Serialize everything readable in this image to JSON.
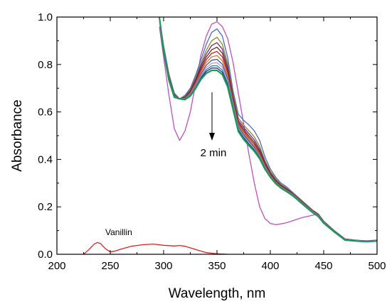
{
  "chart_data": {
    "type": "line",
    "title": "",
    "xlabel": "Wavelength, nm",
    "ylabel": "Absorbance",
    "xlim": [
      200,
      500
    ],
    "ylim": [
      0.0,
      1.0
    ],
    "xticks": [
      "200",
      "250",
      "300",
      "350",
      "400",
      "450",
      "500"
    ],
    "yticks": [
      "0.0",
      "0.2",
      "0.4",
      "0.6",
      "0.8",
      "1.0"
    ],
    "grid": false,
    "annotations": {
      "time_label": "2 min",
      "vanillin_label": "Vanillin"
    },
    "series": [
      {
        "color": "#c04fc0",
        "width": 1.3,
        "x": [
          296,
          300,
          305,
          310,
          315,
          320,
          325,
          330,
          335,
          340,
          345,
          350,
          355,
          360,
          365,
          370,
          375,
          380,
          385,
          390,
          395,
          400,
          405,
          410,
          415,
          420,
          425,
          430,
          435,
          440,
          445
        ],
        "y": [
          0.96,
          0.83,
          0.67,
          0.53,
          0.48,
          0.52,
          0.6,
          0.72,
          0.84,
          0.92,
          0.97,
          0.98,
          0.96,
          0.91,
          0.81,
          0.68,
          0.55,
          0.42,
          0.3,
          0.2,
          0.15,
          0.13,
          0.125,
          0.128,
          0.133,
          0.14,
          0.148,
          0.155,
          0.16,
          0.165,
          0.17
        ]
      },
      {
        "color": "#4a6fc0",
        "width": 1.3,
        "x": [
          296,
          300,
          305,
          310,
          315,
          320,
          325,
          330,
          335,
          340,
          345,
          350,
          355,
          360,
          365,
          370,
          375,
          380,
          385,
          390,
          395,
          400,
          405,
          410,
          415,
          420,
          425,
          430,
          435,
          440,
          445,
          450,
          460,
          470,
          480,
          490,
          500
        ],
        "y": [
          1.0,
          0.88,
          0.76,
          0.68,
          0.655,
          0.67,
          0.7,
          0.755,
          0.82,
          0.885,
          0.935,
          0.95,
          0.92,
          0.83,
          0.69,
          0.59,
          0.565,
          0.545,
          0.52,
          0.48,
          0.41,
          0.36,
          0.325,
          0.3,
          0.285,
          0.265,
          0.245,
          0.225,
          0.205,
          0.185,
          0.17,
          0.14,
          0.1,
          0.065,
          0.06,
          0.057,
          0.06
        ]
      },
      {
        "color": "#8a8a2a",
        "width": 1.3,
        "x": [
          296,
          300,
          305,
          310,
          315,
          320,
          325,
          330,
          335,
          340,
          345,
          350,
          355,
          360,
          365,
          370,
          375,
          380,
          385,
          390,
          395,
          400,
          405,
          410,
          415,
          420,
          425,
          430,
          435,
          440,
          445,
          450,
          460,
          470,
          480,
          490,
          500
        ],
        "y": [
          1.0,
          0.87,
          0.75,
          0.675,
          0.655,
          0.665,
          0.695,
          0.745,
          0.805,
          0.86,
          0.9,
          0.915,
          0.885,
          0.805,
          0.675,
          0.575,
          0.545,
          0.52,
          0.495,
          0.455,
          0.395,
          0.35,
          0.318,
          0.295,
          0.28,
          0.262,
          0.243,
          0.223,
          0.203,
          0.184,
          0.168,
          0.138,
          0.099,
          0.064,
          0.059,
          0.056,
          0.059
        ]
      },
      {
        "color": "#6a2a8a",
        "width": 1.3,
        "x": [
          296,
          300,
          305,
          310,
          315,
          320,
          325,
          330,
          335,
          340,
          345,
          350,
          355,
          360,
          365,
          370,
          375,
          380,
          385,
          390,
          395,
          400,
          405,
          410,
          415,
          420,
          425,
          430,
          435,
          440,
          445,
          450,
          460,
          470,
          480,
          490,
          500
        ],
        "y": [
          1.0,
          0.865,
          0.745,
          0.672,
          0.655,
          0.663,
          0.69,
          0.737,
          0.795,
          0.845,
          0.88,
          0.892,
          0.865,
          0.79,
          0.665,
          0.565,
          0.535,
          0.508,
          0.482,
          0.443,
          0.387,
          0.344,
          0.313,
          0.291,
          0.277,
          0.26,
          0.241,
          0.221,
          0.201,
          0.183,
          0.167,
          0.137,
          0.098,
          0.064,
          0.059,
          0.056,
          0.059
        ]
      },
      {
        "color": "#6a2a1a",
        "width": 1.3,
        "x": [
          296,
          300,
          305,
          310,
          315,
          320,
          325,
          330,
          335,
          340,
          345,
          350,
          355,
          360,
          365,
          370,
          375,
          380,
          385,
          390,
          395,
          400,
          405,
          410,
          415,
          420,
          425,
          430,
          435,
          440,
          445,
          450,
          460,
          470,
          480,
          490,
          500
        ],
        "y": [
          1.0,
          0.862,
          0.742,
          0.67,
          0.655,
          0.66,
          0.685,
          0.73,
          0.785,
          0.832,
          0.862,
          0.873,
          0.848,
          0.777,
          0.657,
          0.557,
          0.526,
          0.498,
          0.472,
          0.434,
          0.381,
          0.339,
          0.309,
          0.288,
          0.274,
          0.258,
          0.239,
          0.219,
          0.2,
          0.182,
          0.166,
          0.136,
          0.097,
          0.063,
          0.058,
          0.055,
          0.058
        ]
      },
      {
        "color": "#c02a2a",
        "width": 1.3,
        "x": [
          296,
          300,
          305,
          310,
          315,
          320,
          325,
          330,
          335,
          340,
          345,
          350,
          355,
          360,
          365,
          370,
          375,
          380,
          385,
          390,
          395,
          400,
          405,
          410,
          415,
          420,
          425,
          430,
          435,
          440,
          445,
          450,
          460,
          470,
          480,
          490,
          500
        ],
        "y": [
          1.0,
          0.86,
          0.74,
          0.668,
          0.655,
          0.658,
          0.681,
          0.724,
          0.776,
          0.82,
          0.847,
          0.855,
          0.832,
          0.765,
          0.649,
          0.55,
          0.518,
          0.49,
          0.464,
          0.427,
          0.376,
          0.335,
          0.306,
          0.286,
          0.272,
          0.256,
          0.238,
          0.218,
          0.199,
          0.181,
          0.165,
          0.135,
          0.097,
          0.063,
          0.058,
          0.055,
          0.058
        ]
      },
      {
        "color": "#e07a2a",
        "width": 1.3,
        "x": [
          296,
          300,
          305,
          310,
          315,
          320,
          325,
          330,
          335,
          340,
          345,
          350,
          355,
          360,
          365,
          370,
          375,
          380,
          385,
          390,
          395,
          400,
          405,
          410,
          415,
          420,
          425,
          430,
          435,
          440,
          445,
          450,
          460,
          470,
          480,
          490,
          500
        ],
        "y": [
          1.0,
          0.858,
          0.738,
          0.667,
          0.655,
          0.657,
          0.678,
          0.718,
          0.768,
          0.808,
          0.832,
          0.838,
          0.816,
          0.753,
          0.642,
          0.544,
          0.511,
          0.483,
          0.457,
          0.421,
          0.372,
          0.332,
          0.304,
          0.284,
          0.27,
          0.255,
          0.237,
          0.217,
          0.198,
          0.18,
          0.164,
          0.135,
          0.096,
          0.062,
          0.058,
          0.055,
          0.058
        ]
      },
      {
        "color": "#3a5aa8",
        "width": 1.3,
        "x": [
          296,
          300,
          305,
          310,
          315,
          320,
          325,
          330,
          335,
          340,
          345,
          350,
          355,
          360,
          365,
          370,
          375,
          380,
          385,
          390,
          395,
          400,
          405,
          410,
          415,
          420,
          425,
          430,
          435,
          440,
          445,
          450,
          460,
          470,
          480,
          490,
          500
        ],
        "y": [
          1.0,
          0.857,
          0.737,
          0.666,
          0.655,
          0.656,
          0.675,
          0.713,
          0.76,
          0.797,
          0.818,
          0.822,
          0.801,
          0.742,
          0.635,
          0.538,
          0.504,
          0.477,
          0.451,
          0.416,
          0.368,
          0.33,
          0.302,
          0.283,
          0.269,
          0.254,
          0.236,
          0.216,
          0.197,
          0.179,
          0.163,
          0.134,
          0.096,
          0.062,
          0.058,
          0.055,
          0.058
        ]
      },
      {
        "color": "#d090d0",
        "width": 1.3,
        "x": [
          296,
          300,
          305,
          310,
          315,
          320,
          325,
          330,
          335,
          340,
          345,
          350,
          355,
          360,
          365,
          370,
          375,
          380,
          385,
          390,
          395,
          400,
          405,
          410,
          415,
          420,
          425,
          430,
          435,
          440,
          445,
          450,
          460,
          470,
          480,
          490,
          500
        ],
        "y": [
          1.0,
          0.856,
          0.736,
          0.665,
          0.655,
          0.655,
          0.673,
          0.709,
          0.753,
          0.787,
          0.805,
          0.808,
          0.788,
          0.732,
          0.629,
          0.532,
          0.498,
          0.471,
          0.446,
          0.412,
          0.365,
          0.328,
          0.301,
          0.282,
          0.268,
          0.253,
          0.235,
          0.215,
          0.196,
          0.178,
          0.162,
          0.134,
          0.096,
          0.062,
          0.058,
          0.055,
          0.058
        ]
      },
      {
        "color": "#2a8a9a",
        "width": 1.3,
        "x": [
          296,
          300,
          305,
          310,
          315,
          320,
          325,
          330,
          335,
          340,
          345,
          350,
          355,
          360,
          365,
          370,
          375,
          380,
          385,
          390,
          395,
          400,
          405,
          410,
          415,
          420,
          425,
          430,
          435,
          440,
          445,
          450,
          460,
          470,
          480,
          490,
          500
        ],
        "y": [
          1.0,
          0.855,
          0.735,
          0.664,
          0.655,
          0.654,
          0.671,
          0.705,
          0.747,
          0.778,
          0.794,
          0.795,
          0.776,
          0.722,
          0.623,
          0.527,
          0.493,
          0.466,
          0.442,
          0.409,
          0.363,
          0.327,
          0.3,
          0.281,
          0.267,
          0.252,
          0.234,
          0.214,
          0.195,
          0.177,
          0.161,
          0.133,
          0.095,
          0.061,
          0.057,
          0.054,
          0.057
        ]
      },
      {
        "color": "#2a2a8a",
        "width": 1.3,
        "x": [
          296,
          300,
          305,
          310,
          315,
          320,
          325,
          330,
          335,
          340,
          345,
          350,
          355,
          360,
          365,
          370,
          375,
          380,
          385,
          390,
          395,
          400,
          405,
          410,
          415,
          420,
          425,
          430,
          435,
          440,
          445,
          450,
          460,
          470,
          480,
          490,
          500
        ],
        "y": [
          1.0,
          0.854,
          0.734,
          0.663,
          0.655,
          0.653,
          0.669,
          0.702,
          0.742,
          0.771,
          0.785,
          0.785,
          0.767,
          0.714,
          0.618,
          0.523,
          0.489,
          0.462,
          0.438,
          0.406,
          0.361,
          0.326,
          0.299,
          0.28,
          0.266,
          0.251,
          0.233,
          0.213,
          0.194,
          0.176,
          0.16,
          0.132,
          0.095,
          0.061,
          0.057,
          0.054,
          0.057
        ]
      },
      {
        "color": "#1a9a5a",
        "width": 2.2,
        "x": [
          296,
          300,
          305,
          310,
          315,
          320,
          325,
          330,
          335,
          340,
          345,
          350,
          355,
          360,
          365,
          370,
          375,
          380,
          385,
          390,
          395,
          400,
          405,
          410,
          415,
          420,
          425,
          430,
          435,
          440,
          445,
          450,
          460,
          470,
          480,
          490,
          500
        ],
        "y": [
          1.0,
          0.853,
          0.733,
          0.662,
          0.655,
          0.652,
          0.667,
          0.699,
          0.737,
          0.763,
          0.775,
          0.775,
          0.758,
          0.706,
          0.612,
          0.518,
          0.484,
          0.458,
          0.434,
          0.403,
          0.359,
          0.325,
          0.298,
          0.279,
          0.265,
          0.25,
          0.232,
          0.212,
          0.193,
          0.175,
          0.159,
          0.131,
          0.094,
          0.06,
          0.056,
          0.053,
          0.056
        ]
      },
      {
        "color": "#e02020",
        "width": 1.3,
        "x": [
          225,
          230,
          235,
          238,
          241,
          245,
          250,
          255,
          260,
          270,
          280,
          290,
          300,
          310,
          315,
          320,
          330,
          340,
          350,
          360
        ],
        "y": [
          0.0,
          0.02,
          0.043,
          0.05,
          0.045,
          0.025,
          0.01,
          0.014,
          0.022,
          0.034,
          0.04,
          0.043,
          0.038,
          0.035,
          0.037,
          0.034,
          0.02,
          0.007,
          0.002,
          0.0
        ]
      }
    ]
  }
}
